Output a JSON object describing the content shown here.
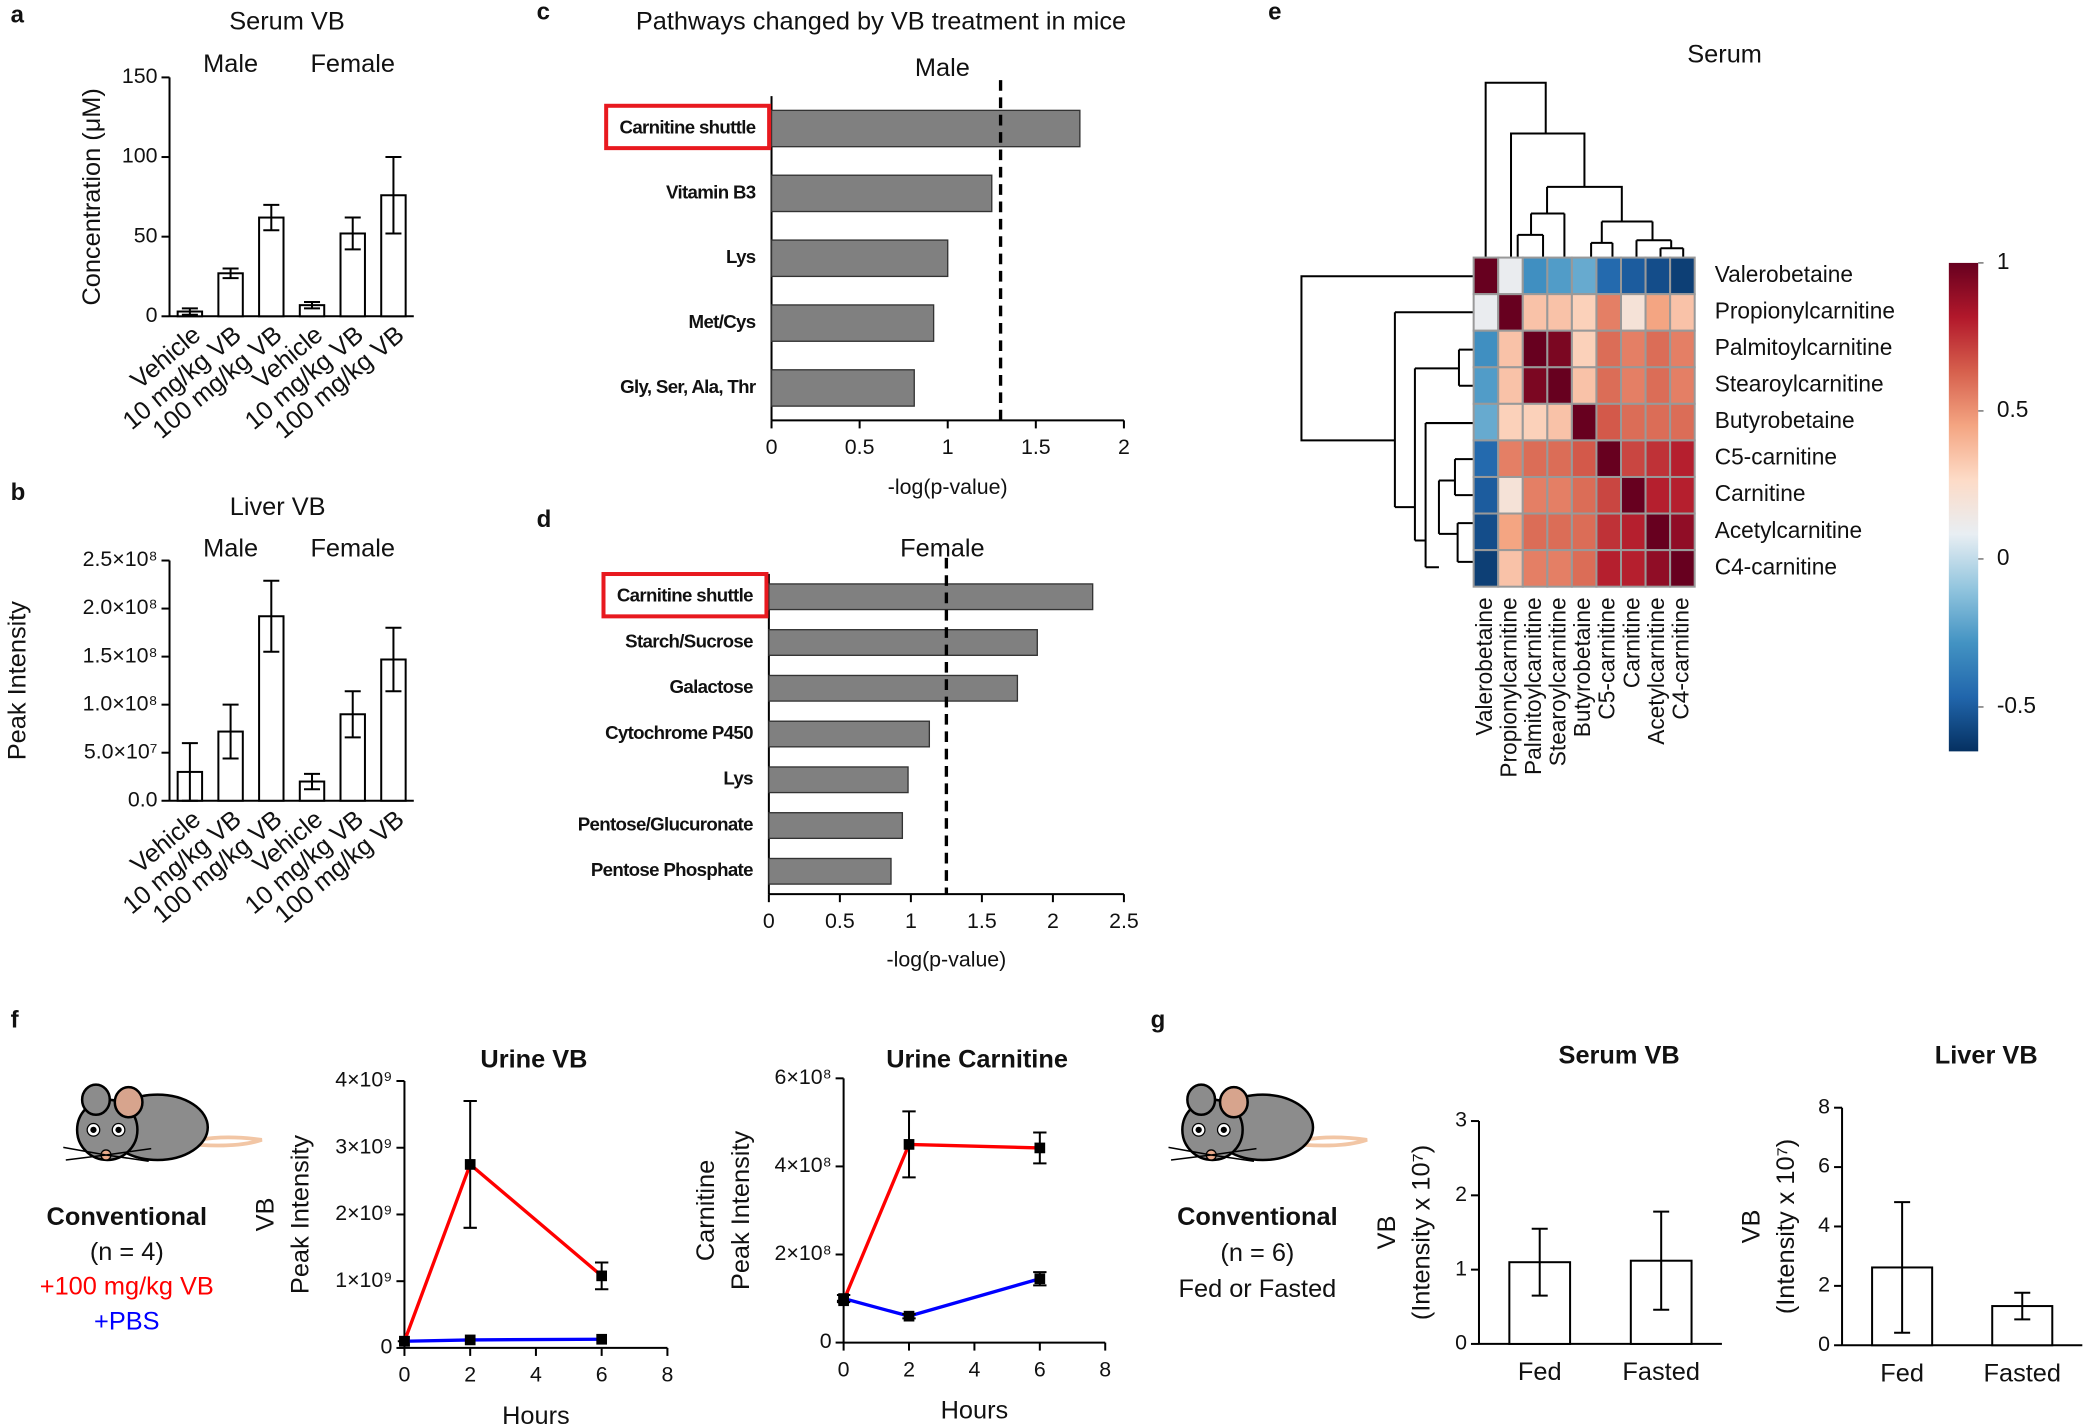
{
  "chart_data": [
    {
      "panel": "a",
      "type": "bar",
      "title": "Serum VB",
      "group_labels": [
        "Male",
        "Female"
      ],
      "categories": [
        "Vehicle",
        "10 mg/kg VB",
        "100 mg/kg VB",
        "Vehicle",
        "10 mg/kg VB",
        "100 mg/kg VB"
      ],
      "values": [
        3,
        27,
        62,
        7,
        52,
        76
      ],
      "errors": [
        2,
        3,
        8,
        2,
        10,
        24
      ],
      "color": "#ffffff",
      "ylim": [
        0,
        150
      ],
      "yticks": [
        0,
        50,
        100,
        150
      ],
      "ylabel": "Concentration (μM)"
    },
    {
      "panel": "b",
      "type": "bar",
      "title": "Liver VB",
      "group_labels": [
        "Male",
        "Female"
      ],
      "categories": [
        "Vehicle",
        "10 mg/kg VB",
        "100 mg/kg VB",
        "Vehicle",
        "10 mg/kg VB",
        "100 mg/kg VB"
      ],
      "values": [
        30000000,
        72000000,
        192000000,
        20000000,
        90000000,
        147000000
      ],
      "errors": [
        30000000,
        28000000,
        37000000,
        8000000,
        24000000,
        33000000
      ],
      "color": "#ffffff",
      "ylim": [
        0,
        250000000
      ],
      "yticks": [
        {
          "value": 0,
          "label": "0.0"
        },
        {
          "value": 50000000,
          "label": "5.0×10⁷"
        },
        {
          "value": 100000000,
          "label": "1.0×10⁸"
        },
        {
          "value": 150000000,
          "label": "1.5×10⁸"
        },
        {
          "value": 200000000,
          "label": "2.0×10⁸"
        },
        {
          "value": 250000000,
          "label": "2.5×10⁸"
        }
      ],
      "ylabel": "Peak Intensity"
    },
    {
      "panel": "c",
      "type": "barh",
      "title": "Pathways changed by VB treatment in mice",
      "subtitle": "Male",
      "categories": [
        "Carnitine shuttle",
        "Vitamin B3",
        "Lys",
        "Met/Cys",
        "Gly, Ser, Ala, Thr"
      ],
      "values": [
        1.75,
        1.25,
        1.0,
        0.92,
        0.81
      ],
      "color": "#808080",
      "xlim": [
        0,
        2
      ],
      "xticks": [
        0,
        0.5,
        1,
        1.5,
        2
      ],
      "xlabel": "-log(p-value)",
      "threshold": 1.3,
      "highlight": 0,
      "highlight_color": "#e8191f"
    },
    {
      "panel": "d",
      "type": "barh",
      "subtitle": "Female",
      "categories": [
        "Carnitine shuttle",
        "Starch/Sucrose",
        "Galactose",
        "Cytochrome P450",
        "Lys",
        "Pentose/Glucuronate",
        "Pentose Phosphate"
      ],
      "values": [
        2.28,
        1.89,
        1.75,
        1.13,
        0.98,
        0.94,
        0.86
      ],
      "color": "#808080",
      "xlim": [
        0,
        2.5
      ],
      "xticks": [
        0,
        0.5,
        1,
        1.5,
        2,
        2.5
      ],
      "xlabel": "-log(p-value)",
      "threshold": 1.25,
      "highlight": 0,
      "highlight_color": "#e8191f"
    },
    {
      "panel": "e",
      "type": "heatmap",
      "title": "Serum",
      "rows": [
        "Valerobetaine",
        "Propionylcarnitine",
        "Palmitoylcarnitine",
        "Stearoylcarnitine",
        "Butyrobetaine",
        "C5-carnitine",
        "Carnitine",
        "Acetylcarnitine",
        "C4-carnitine"
      ],
      "columns": [
        "Valerobetaine",
        "Propionylcarnitine",
        "Palmitoylcarnitine",
        "Stearoylcarnitine",
        "Butyrobetaine",
        "C5-carnitine",
        "Carnitine",
        "Acetylcarnitine",
        "C4-carnitine"
      ],
      "values": [
        [
          1,
          0.1,
          -0.3,
          -0.25,
          -0.2,
          -0.45,
          -0.5,
          -0.55,
          -0.6
        ],
        [
          0.1,
          1,
          0.35,
          0.35,
          0.3,
          0.55,
          0.2,
          0.45,
          0.35
        ],
        [
          -0.3,
          0.35,
          1,
          0.95,
          0.3,
          0.6,
          0.55,
          0.6,
          0.55
        ],
        [
          -0.25,
          0.35,
          0.95,
          1,
          0.35,
          0.6,
          0.55,
          0.6,
          0.55
        ],
        [
          -0.2,
          0.3,
          0.3,
          0.35,
          1,
          0.65,
          0.6,
          0.6,
          0.6
        ],
        [
          -0.45,
          0.55,
          0.6,
          0.6,
          0.65,
          1,
          0.7,
          0.75,
          0.8
        ],
        [
          -0.5,
          0.2,
          0.55,
          0.55,
          0.6,
          0.7,
          1,
          0.8,
          0.8
        ],
        [
          -0.55,
          0.45,
          0.6,
          0.6,
          0.6,
          0.75,
          0.8,
          1,
          0.9
        ],
        [
          -0.6,
          0.35,
          0.55,
          0.55,
          0.6,
          0.8,
          0.8,
          0.9,
          1
        ]
      ],
      "clim": [
        -0.65,
        1
      ],
      "colorbar_ticks": [
        -0.5,
        0,
        0.5,
        1
      ],
      "colormap": [
        "#053061",
        "#2166ac",
        "#4393c3",
        "#92c5de",
        "#e8eef3",
        "#fddbc7",
        "#f4a582",
        "#d6604d",
        "#b2182b",
        "#67001f"
      ]
    },
    {
      "panel": "f",
      "type": "line",
      "title": "Urine VB",
      "annotations": [
        "Conventional",
        "(n = 4)"
      ],
      "x": [
        0,
        2,
        6
      ],
      "series": [
        {
          "name": "+100 mg/kg VB",
          "color": "#ff0000",
          "values": [
            100000000,
            2750000000,
            1080000000
          ],
          "errors": [
            0,
            950000000,
            200000000
          ]
        },
        {
          "name": "+PBS",
          "color": "#0000ff",
          "values": [
            100000000,
            120000000,
            130000000
          ]
        }
      ],
      "xlim": [
        0,
        8
      ],
      "xticks": [
        0,
        2,
        4,
        6,
        8
      ],
      "ylim": [
        0,
        4000000000
      ],
      "yticks": [
        0,
        {
          "value": 1000000000,
          "label": "1×10⁹"
        },
        {
          "value": 2000000000,
          "label": "2×10⁹"
        },
        {
          "value": 3000000000,
          "label": "3×10⁹"
        },
        {
          "value": 4000000000,
          "label": "4×10⁹"
        }
      ],
      "ylabel": [
        "VB",
        "Peak Intensity"
      ],
      "xlabel": "Hours"
    },
    {
      "type": "line",
      "title": "Urine Carnitine",
      "x": [
        0,
        2,
        6
      ],
      "series": [
        {
          "color": "#ff0000",
          "values": [
            95000000,
            450000000,
            442000000
          ],
          "errors": [
            0,
            75000000,
            35000000
          ]
        },
        {
          "color": "#0000ff",
          "values": [
            100000000,
            60000000,
            145000000
          ],
          "errors": [
            8000000,
            5000000,
            15000000
          ]
        }
      ],
      "xlim": [
        0,
        8
      ],
      "xticks": [
        0,
        2,
        4,
        6,
        8
      ],
      "ylim": [
        0,
        600000000
      ],
      "yticks": [
        0,
        {
          "value": 200000000,
          "label": "2×10⁸"
        },
        {
          "value": 400000000,
          "label": "4×10⁸"
        },
        {
          "value": 600000000,
          "label": "6×10⁸"
        }
      ],
      "ylabel": [
        "Carnitine",
        "Peak Intensity"
      ],
      "xlabel": "Hours"
    },
    {
      "panel": "g",
      "type": "bar",
      "title": "Serum VB",
      "annotations": [
        "Conventional",
        "(n = 6)",
        "Fed or Fasted"
      ],
      "categories": [
        "Fed",
        "Fasted"
      ],
      "values": [
        1.1,
        1.12
      ],
      "errors": [
        0.45,
        0.66
      ],
      "color": "#ffffff",
      "ylim": [
        0,
        3
      ],
      "yticks": [
        0,
        1,
        2,
        3
      ],
      "ylabel": [
        "VB",
        "(Intensity x 10⁷)"
      ]
    },
    {
      "type": "bar",
      "title": "Liver VB",
      "categories": [
        "Fed",
        "Fasted"
      ],
      "values": [
        2.62,
        1.32
      ],
      "errors": [
        2.2,
        0.45
      ],
      "color": "#ffffff",
      "ylim": [
        0,
        8
      ],
      "yticks": [
        0,
        2,
        4,
        6,
        8
      ],
      "ylabel": [
        "VB",
        "(Intensity x 10⁷)"
      ]
    }
  ]
}
